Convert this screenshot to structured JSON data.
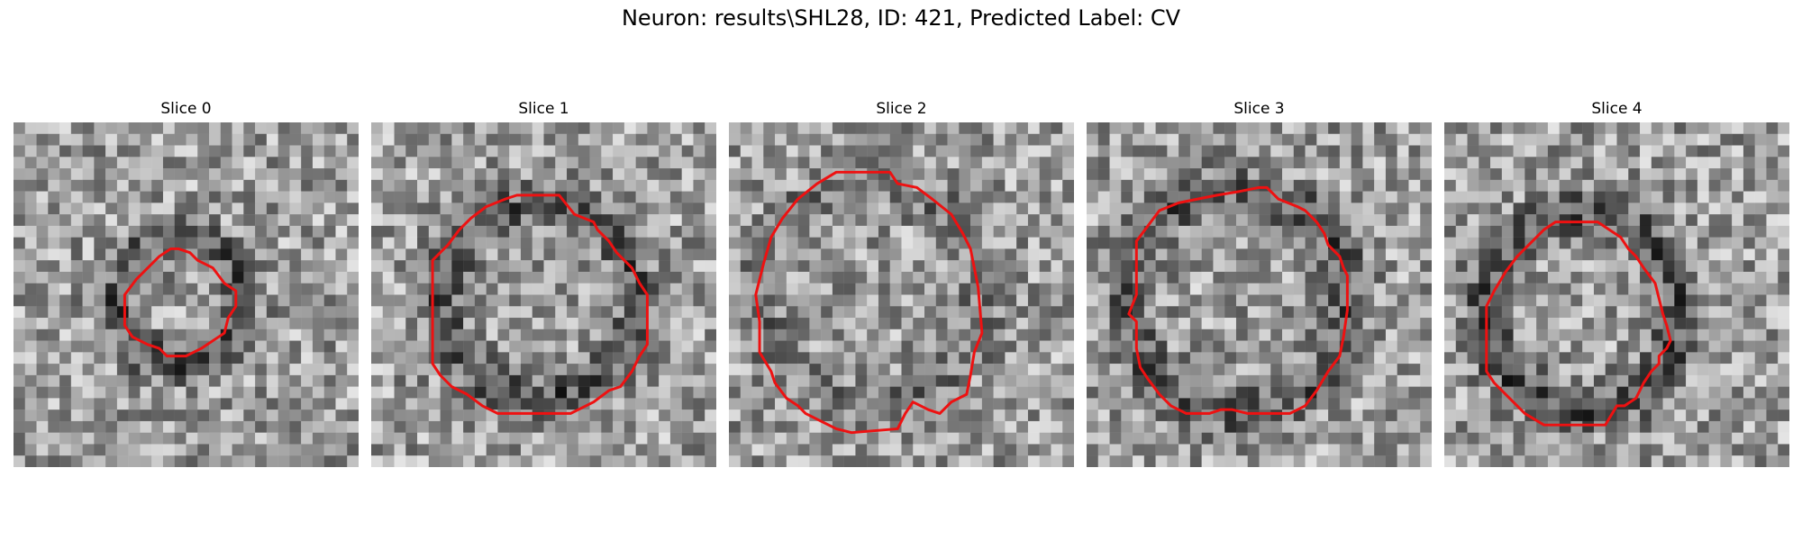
{
  "figure": {
    "title": "Neuron: results\\SHL28, ID: 421, Predicted Label: CV",
    "panels": [
      {
        "title": "Slice 0",
        "outline": [
          [
            43,
            33
          ],
          [
            46,
            34
          ],
          [
            48,
            36
          ],
          [
            50,
            37
          ],
          [
            52,
            38
          ],
          [
            55,
            42
          ],
          [
            58,
            44
          ],
          [
            58,
            48
          ],
          [
            56,
            51
          ],
          [
            55,
            55
          ],
          [
            52,
            57
          ],
          [
            49,
            59
          ],
          [
            45,
            61
          ],
          [
            40,
            61
          ],
          [
            38,
            59
          ],
          [
            35,
            58
          ],
          [
            31,
            56
          ],
          [
            29,
            53
          ],
          [
            29,
            45
          ],
          [
            32,
            41
          ],
          [
            35,
            38
          ],
          [
            38,
            35
          ],
          [
            41,
            33
          ]
        ]
      },
      {
        "title": "Slice 1",
        "outline": [
          [
            40,
            19
          ],
          [
            49,
            19
          ],
          [
            53,
            24
          ],
          [
            58,
            26
          ],
          [
            59,
            28
          ],
          [
            62,
            31
          ],
          [
            64,
            34
          ],
          [
            68,
            38
          ],
          [
            70,
            42
          ],
          [
            72,
            45
          ],
          [
            72,
            58
          ],
          [
            70,
            61
          ],
          [
            68,
            65
          ],
          [
            65,
            69
          ],
          [
            62,
            70
          ],
          [
            58,
            73
          ],
          [
            54,
            75
          ],
          [
            52,
            76
          ],
          [
            33,
            76
          ],
          [
            29,
            74
          ],
          [
            25,
            71
          ],
          [
            21,
            69
          ],
          [
            18,
            66
          ],
          [
            16,
            63
          ],
          [
            16,
            36
          ],
          [
            20,
            32
          ],
          [
            23,
            28
          ],
          [
            26,
            25
          ],
          [
            30,
            22
          ],
          [
            35,
            20
          ],
          [
            38,
            19
          ]
        ]
      },
      {
        "title": "Slice 2",
        "outline": [
          [
            32,
            13
          ],
          [
            42,
            13
          ],
          [
            44,
            16
          ],
          [
            49,
            17
          ],
          [
            53,
            20
          ],
          [
            58,
            24
          ],
          [
            61,
            29
          ],
          [
            63,
            33
          ],
          [
            64,
            38
          ],
          [
            65,
            43
          ],
          [
            66,
            55
          ],
          [
            64,
            60
          ],
          [
            63,
            66
          ],
          [
            62,
            71
          ],
          [
            58,
            73
          ],
          [
            55,
            76
          ],
          [
            52,
            75
          ],
          [
            48,
            73
          ],
          [
            46,
            76
          ],
          [
            44,
            80
          ],
          [
            32,
            81
          ],
          [
            28,
            80
          ],
          [
            24,
            78
          ],
          [
            20,
            76
          ],
          [
            18,
            74
          ],
          [
            15,
            72
          ],
          [
            12,
            68
          ],
          [
            11,
            65
          ],
          [
            8,
            60
          ],
          [
            8,
            52
          ],
          [
            7,
            45
          ],
          [
            9,
            37
          ],
          [
            11,
            30
          ],
          [
            14,
            25
          ],
          [
            18,
            20
          ],
          [
            23,
            16
          ],
          [
            28,
            13
          ]
        ]
      },
      {
        "title": "Slice 3",
        "outline": [
          [
            45,
            17
          ],
          [
            47,
            17
          ],
          [
            50,
            20
          ],
          [
            55,
            22
          ],
          [
            57,
            23
          ],
          [
            60,
            26
          ],
          [
            62,
            29
          ],
          [
            63,
            32
          ],
          [
            66,
            35
          ],
          [
            67,
            38
          ],
          [
            68,
            40
          ],
          [
            68,
            49
          ],
          [
            67,
            56
          ],
          [
            66,
            61
          ],
          [
            63,
            65
          ],
          [
            60,
            70
          ],
          [
            57,
            74
          ],
          [
            53,
            76
          ],
          [
            42,
            76
          ],
          [
            38,
            75
          ],
          [
            35,
            75
          ],
          [
            32,
            76
          ],
          [
            26,
            76
          ],
          [
            22,
            74
          ],
          [
            19,
            71
          ],
          [
            16,
            67
          ],
          [
            14,
            64
          ],
          [
            13,
            59
          ],
          [
            13,
            52
          ],
          [
            11,
            50
          ],
          [
            13,
            45
          ],
          [
            13,
            31
          ],
          [
            16,
            27
          ],
          [
            19,
            23
          ],
          [
            24,
            21
          ],
          [
            29,
            20
          ],
          [
            34,
            19
          ],
          [
            40,
            18
          ]
        ]
      },
      {
        "title": "Slice 4",
        "outline": [
          [
            32,
            26
          ],
          [
            40,
            26
          ],
          [
            43,
            28
          ],
          [
            46,
            30
          ],
          [
            48,
            33
          ],
          [
            50,
            35
          ],
          [
            52,
            38
          ],
          [
            55,
            42
          ],
          [
            56,
            46
          ],
          [
            57,
            50
          ],
          [
            58,
            53
          ],
          [
            59,
            57
          ],
          [
            58,
            59
          ],
          [
            56,
            61
          ],
          [
            56,
            63
          ],
          [
            54,
            65
          ],
          [
            52,
            68
          ],
          [
            50,
            72
          ],
          [
            47,
            74
          ],
          [
            45,
            74
          ],
          [
            42,
            79
          ],
          [
            26,
            79
          ],
          [
            21,
            76
          ],
          [
            17,
            72
          ],
          [
            13,
            68
          ],
          [
            11,
            65
          ],
          [
            11,
            48
          ],
          [
            13,
            44
          ],
          [
            16,
            39
          ],
          [
            19,
            35
          ],
          [
            22,
            32
          ],
          [
            26,
            28
          ],
          [
            29,
            26
          ]
        ]
      }
    ],
    "outline_color": "#ee1111"
  }
}
